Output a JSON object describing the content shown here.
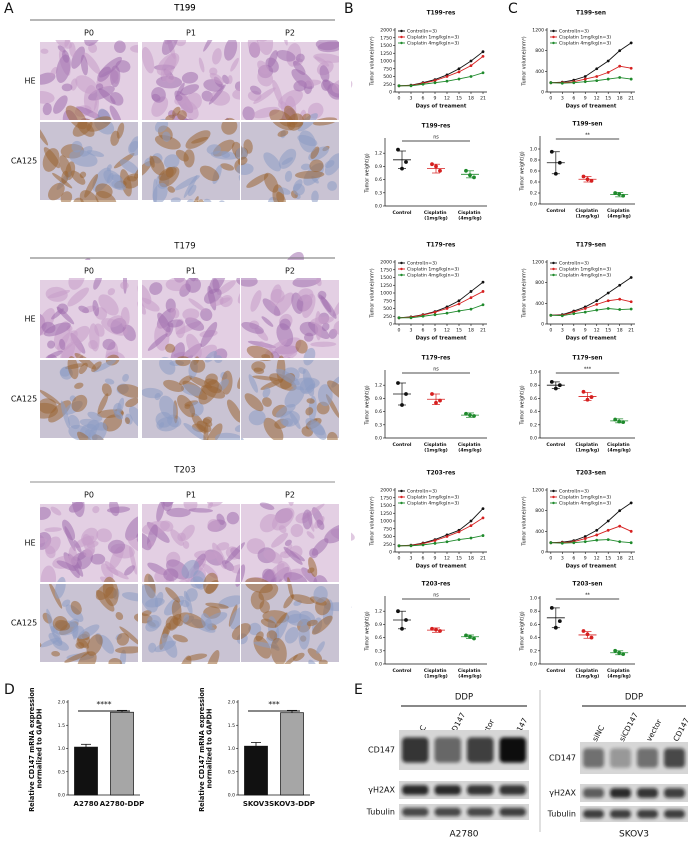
{
  "panels": [
    "A",
    "B",
    "C",
    "D",
    "E"
  ],
  "histology": [
    {
      "name": "T199",
      "columns": [
        "P0",
        "P1",
        "P2"
      ],
      "rows": [
        "HE",
        "CA125"
      ]
    },
    {
      "name": "T179",
      "columns": [
        "P0",
        "P1",
        "P2"
      ],
      "rows": [
        "HE",
        "CA125"
      ]
    },
    {
      "name": "T203",
      "columns": [
        "P0",
        "P1",
        "P2"
      ],
      "rows": [
        "HE",
        "CA125"
      ]
    }
  ],
  "chart_data": [
    {
      "type": "line",
      "title": "T199-res",
      "x_label": "Days of treament",
      "y_label": "Tumor volume(mm³)",
      "x": [
        0,
        3,
        6,
        9,
        12,
        15,
        18,
        21
      ],
      "xlim": [
        -1,
        22
      ],
      "xticks": [
        0,
        3,
        6,
        9,
        12,
        15,
        18,
        21
      ],
      "ylim": [
        0,
        2000
      ],
      "yticks": [
        0,
        250,
        500,
        750,
        1000,
        1250,
        1500,
        1750,
        2000
      ],
      "series": [
        {
          "name": "Control(n=3)",
          "color": "#111111",
          "values": [
            200,
            220,
            300,
            400,
            550,
            750,
            1000,
            1300
          ]
        },
        {
          "name": "Cisplatin 1mg/kg(n=3)",
          "color": "#d62020",
          "values": [
            200,
            210,
            280,
            370,
            500,
            650,
            850,
            1150
          ]
        },
        {
          "name": "Cisplatin 4mg/kg(n=3)",
          "color": "#1f8a2c",
          "values": [
            200,
            200,
            250,
            300,
            350,
            420,
            500,
            620
          ]
        }
      ]
    },
    {
      "type": "scatter",
      "title": "T199-res",
      "y_label": "Tumor weight(g)",
      "categories": [
        "Control",
        "Cisplatin (1mg/kg)",
        "Cisplatin (4mg/kg)"
      ],
      "ylim": [
        0,
        1.5
      ],
      "yticks": [
        {
          "value": 0,
          "label": "0.0"
        },
        0.3,
        0.6,
        0.9,
        1.2
      ],
      "annotation": "ns",
      "series": [
        {
          "color": "#111111",
          "values": [
            1.28,
            1.0,
            0.85
          ],
          "mean": 1.05,
          "error": 0.2
        },
        {
          "color": "#d62020",
          "values": [
            0.95,
            0.8,
            0.9
          ],
          "mean": 0.85,
          "error": 0.1
        },
        {
          "color": "#1f8a2c",
          "values": [
            0.8,
            0.65,
            0.7
          ],
          "mean": 0.72,
          "error": 0.08
        }
      ]
    },
    {
      "type": "line",
      "title": "T179-res",
      "x_label": "Days of treament",
      "y_label": "Tumor volume(mm³)",
      "x": [
        0,
        3,
        6,
        9,
        12,
        15,
        18,
        21
      ],
      "xlim": [
        -1,
        22
      ],
      "xticks": [
        0,
        3,
        6,
        9,
        12,
        15,
        18,
        21
      ],
      "ylim": [
        0,
        2000
      ],
      "yticks": [
        0,
        250,
        500,
        750,
        1000,
        1250,
        1500,
        1750,
        2000
      ],
      "series": [
        {
          "name": "Control(n=3)",
          "color": "#111111",
          "values": [
            200,
            230,
            300,
            400,
            550,
            750,
            1050,
            1350
          ]
        },
        {
          "name": "Cisplatin 1mg/kg(n=3)",
          "color": "#d62020",
          "values": [
            200,
            220,
            290,
            380,
            500,
            650,
            850,
            1050
          ]
        },
        {
          "name": "Cisplatin 4mg/kg(n=3)",
          "color": "#1f8a2c",
          "values": [
            200,
            200,
            250,
            300,
            350,
            420,
            480,
            620
          ]
        }
      ]
    },
    {
      "type": "scatter",
      "title": "T179-res",
      "y_label": "Tumor weight(g)",
      "categories": [
        "Control",
        "Cisplatin (1mg/kg)",
        "Cisplatin (4mg/kg)"
      ],
      "ylim": [
        0,
        1.5
      ],
      "yticks": [
        {
          "value": 0,
          "label": "0.0"
        },
        0.3,
        0.6,
        0.9,
        1.2
      ],
      "annotation": "ns",
      "series": [
        {
          "color": "#111111",
          "values": [
            1.25,
            1.0,
            0.75
          ],
          "mean": 1.0,
          "error": 0.25
        },
        {
          "color": "#d62020",
          "values": [
            1.0,
            0.85,
            0.8
          ],
          "mean": 0.88,
          "error": 0.12
        },
        {
          "color": "#1f8a2c",
          "values": [
            0.55,
            0.5,
            0.52
          ],
          "mean": 0.52,
          "error": 0.05
        }
      ]
    },
    {
      "type": "line",
      "title": "T203-res",
      "x_label": "Days of treament",
      "y_label": "Tumor volume(mm³)",
      "x": [
        0,
        3,
        6,
        9,
        12,
        15,
        18,
        21
      ],
      "xlim": [
        -1,
        22
      ],
      "xticks": [
        0,
        3,
        6,
        9,
        12,
        15,
        18,
        21
      ],
      "ylim": [
        0,
        2000
      ],
      "yticks": [
        0,
        250,
        500,
        750,
        1000,
        1250,
        1500,
        1750,
        2000
      ],
      "series": [
        {
          "name": "Control(n=3)",
          "color": "#111111",
          "values": [
            200,
            220,
            290,
            400,
            550,
            700,
            1000,
            1400
          ]
        },
        {
          "name": "Cisplatin 1mg/kg(n=3)",
          "color": "#d62020",
          "values": [
            200,
            210,
            270,
            370,
            500,
            650,
            850,
            1100
          ]
        },
        {
          "name": "Cisplatin 4mg/kg(n=3)",
          "color": "#1f8a2c",
          "values": [
            200,
            200,
            230,
            280,
            330,
            400,
            450,
            530
          ]
        }
      ]
    },
    {
      "type": "scatter",
      "title": "T203-res",
      "y_label": "Tumor weight(g)",
      "categories": [
        "Control",
        "Cisplatin (1mg/kg)",
        "Cisplatin (4mg/kg)"
      ],
      "ylim": [
        0,
        1.5
      ],
      "yticks": [
        {
          "value": 0,
          "label": "0.0"
        },
        0.3,
        0.6,
        0.9,
        1.2
      ],
      "annotation": "ns",
      "series": [
        {
          "color": "#111111",
          "values": [
            1.2,
            1.0,
            0.8
          ],
          "mean": 1.0,
          "error": 0.2
        },
        {
          "color": "#d62020",
          "values": [
            0.8,
            0.75,
            0.78
          ],
          "mean": 0.77,
          "error": 0.05
        },
        {
          "color": "#1f8a2c",
          "values": [
            0.65,
            0.58,
            0.62
          ],
          "mean": 0.62,
          "error": 0.04
        }
      ]
    },
    {
      "type": "line",
      "title": "T199-sen",
      "x_label": "Days of treament",
      "y_label": "Tumor volume(mm³)",
      "x": [
        0,
        3,
        6,
        9,
        12,
        15,
        18,
        21
      ],
      "xlim": [
        -1,
        22
      ],
      "xticks": [
        0,
        3,
        6,
        9,
        12,
        15,
        18,
        21
      ],
      "ylim": [
        0,
        1200
      ],
      "yticks": [
        0,
        400,
        800,
        1200
      ],
      "series": [
        {
          "name": "Control(n=3)",
          "color": "#111111",
          "values": [
            180,
            190,
            230,
            300,
            450,
            600,
            800,
            950
          ]
        },
        {
          "name": "Cisplatin 1mg/kg(n=3)",
          "color": "#d62020",
          "values": [
            180,
            180,
            200,
            250,
            300,
            380,
            500,
            460
          ]
        },
        {
          "name": "Cisplatin 4mg/kg(n=3)",
          "color": "#1f8a2c",
          "values": [
            180,
            170,
            180,
            200,
            220,
            250,
            280,
            250
          ]
        }
      ]
    },
    {
      "type": "scatter",
      "title": "T199-sen",
      "y_label": "Tumor weight(g)",
      "categories": [
        "Control",
        "Cisplatin (1mg/kg)",
        "Cisplatin (4mg/kg)"
      ],
      "ylim": [
        0,
        1.2
      ],
      "yticks": [
        {
          "value": 0,
          "label": "0.0"
        },
        0.2,
        0.4,
        0.6,
        0.8,
        {
          "value": 1,
          "label": "1.0"
        }
      ],
      "annotation": "**",
      "series": [
        {
          "color": "#111111",
          "values": [
            0.95,
            0.75,
            0.55
          ],
          "mean": 0.75,
          "error": 0.2
        },
        {
          "color": "#d62020",
          "values": [
            0.5,
            0.42,
            0.45
          ],
          "mean": 0.45,
          "error": 0.05
        },
        {
          "color": "#1f8a2c",
          "values": [
            0.2,
            0.15,
            0.18
          ],
          "mean": 0.17,
          "error": 0.04
        }
      ]
    },
    {
      "type": "line",
      "title": "T179-sen",
      "x_label": "Days of treament",
      "y_label": "Tumor volume(mm³)",
      "x": [
        0,
        3,
        6,
        9,
        12,
        15,
        18,
        21
      ],
      "xlim": [
        -1,
        22
      ],
      "xticks": [
        0,
        3,
        6,
        9,
        12,
        15,
        18,
        21
      ],
      "ylim": [
        0,
        1200
      ],
      "yticks": [
        0,
        400,
        800,
        1200
      ],
      "series": [
        {
          "name": "Control(n=3)",
          "color": "#111111",
          "values": [
            170,
            180,
            250,
            330,
            450,
            600,
            750,
            900
          ]
        },
        {
          "name": "Cisplatin 1mg/kg(n=3)",
          "color": "#d62020",
          "values": [
            170,
            170,
            230,
            300,
            380,
            450,
            480,
            430
          ]
        },
        {
          "name": "Cisplatin 4mg/kg(n=3)",
          "color": "#1f8a2c",
          "values": [
            170,
            160,
            200,
            230,
            270,
            300,
            280,
            290
          ]
        }
      ]
    },
    {
      "type": "scatter",
      "title": "T179-sen",
      "y_label": "Tumor weight(g)",
      "categories": [
        "Control",
        "Cisplatin (1mg/kg)",
        "Cisplatin (4mg/kg)"
      ],
      "ylim": [
        0,
        1.0
      ],
      "yticks": [
        {
          "value": 0,
          "label": "0.0"
        },
        0.2,
        0.4,
        0.6,
        0.8,
        {
          "value": 1,
          "label": "1.0"
        }
      ],
      "annotation": "***",
      "series": [
        {
          "color": "#111111",
          "values": [
            0.85,
            0.8,
            0.75
          ],
          "mean": 0.8,
          "error": 0.05
        },
        {
          "color": "#d62020",
          "values": [
            0.7,
            0.62,
            0.58
          ],
          "mean": 0.63,
          "error": 0.06
        },
        {
          "color": "#1f8a2c",
          "values": [
            0.28,
            0.24,
            0.25
          ],
          "mean": 0.26,
          "error": 0.03
        }
      ]
    },
    {
      "type": "line",
      "title": "T203-sen",
      "x_label": "Days of treament",
      "y_label": "Tumor volume(mm³)",
      "x": [
        0,
        3,
        6,
        9,
        12,
        15,
        18,
        21
      ],
      "xlim": [
        -1,
        22
      ],
      "xticks": [
        0,
        3,
        6,
        9,
        12,
        15,
        18,
        21
      ],
      "ylim": [
        0,
        1200
      ],
      "yticks": [
        0,
        400,
        800,
        1200
      ],
      "series": [
        {
          "name": "Control(n=3)",
          "color": "#111111",
          "values": [
            180,
            190,
            220,
            300,
            420,
            600,
            800,
            950
          ]
        },
        {
          "name": "Cisplatin 1mg/kg(n=3)",
          "color": "#d62020",
          "values": [
            180,
            180,
            200,
            260,
            330,
            420,
            500,
            400
          ]
        },
        {
          "name": "Cisplatin 4mg/kg(n=3)",
          "color": "#1f8a2c",
          "values": [
            180,
            170,
            180,
            200,
            230,
            240,
            200,
            180
          ]
        }
      ]
    },
    {
      "type": "scatter",
      "title": "T203-sen",
      "y_label": "Tumor weight(g)",
      "categories": [
        "Control",
        "Cisplatin (1mg/kg)",
        "Cisplatin (4mg/kg)"
      ],
      "ylim": [
        0,
        1.0
      ],
      "yticks": [
        {
          "value": 0,
          "label": "0.0"
        },
        0.2,
        0.4,
        0.6,
        0.8,
        {
          "value": 1,
          "label": "1.0"
        }
      ],
      "annotation": "**",
      "series": [
        {
          "color": "#111111",
          "values": [
            0.85,
            0.65,
            0.55
          ],
          "mean": 0.7,
          "error": 0.15
        },
        {
          "color": "#d62020",
          "values": [
            0.5,
            0.4,
            0.45
          ],
          "mean": 0.44,
          "error": 0.05
        },
        {
          "color": "#1f8a2c",
          "values": [
            0.2,
            0.15,
            0.17
          ],
          "mean": 0.17,
          "error": 0.03
        }
      ]
    },
    {
      "type": "bar",
      "y_label": "Relative CD147 mRNA expression normalized to GAPDH",
      "categories": [
        "A2780",
        "A2780-DDP"
      ],
      "values": [
        1.03,
        1.78
      ],
      "errors": [
        0.06,
        0.04
      ],
      "colors": [
        "#111111",
        "#a6a6a6"
      ],
      "ylim": [
        0,
        2.0
      ],
      "yticks": [
        {
          "value": 0,
          "label": "0.0"
        },
        0.5,
        {
          "value": 1,
          "label": "1.0"
        },
        1.5,
        {
          "value": 2,
          "label": "2.0"
        }
      ],
      "annotation": "****"
    },
    {
      "type": "bar",
      "y_label": "Relative CD147 mRNA expression normalized to GAPDH",
      "categories": [
        "SKOV3",
        "SKOV3-DDP"
      ],
      "values": [
        1.05,
        1.77
      ],
      "errors": [
        0.08,
        0.05
      ],
      "colors": [
        "#111111",
        "#a6a6a6"
      ],
      "ylim": [
        0,
        2.0
      ],
      "yticks": [
        {
          "value": 0,
          "label": "0.0"
        },
        0.5,
        {
          "value": 1,
          "label": "1.0"
        },
        1.5,
        {
          "value": 2,
          "label": "2.0"
        }
      ],
      "annotation": "***"
    }
  ],
  "western": [
    {
      "treatment": "DDP",
      "lanes": [
        "siNC",
        "siCD147",
        "vector",
        "CD147"
      ],
      "rows": [
        "CD147",
        "γH2AX",
        "Tubulin"
      ],
      "cell_line": "A2780"
    },
    {
      "treatment": "DDP",
      "lanes": [
        "siNC",
        "siCD147",
        "vector",
        "CD147"
      ],
      "rows": [
        "CD147",
        "γH2AX",
        "Tubulin"
      ],
      "cell_line": "SKOV3"
    }
  ]
}
